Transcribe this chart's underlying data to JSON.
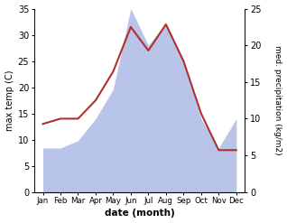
{
  "months": [
    "Jan",
    "Feb",
    "Mar",
    "Apr",
    "May",
    "Jun",
    "Jul",
    "Aug",
    "Sep",
    "Oct",
    "Nov",
    "Dec"
  ],
  "temperature": [
    13.0,
    14.0,
    14.0,
    17.5,
    23.0,
    31.5,
    27.0,
    32.0,
    25.0,
    15.0,
    8.0,
    8.0
  ],
  "precipitation": [
    6.0,
    6.0,
    7.0,
    10.0,
    14.0,
    25.0,
    20.0,
    23.0,
    18.0,
    10.0,
    6.0,
    10.0
  ],
  "temp_color": "#b03030",
  "precip_color": "#b8c4e8",
  "temp_ylim": [
    0,
    35
  ],
  "precip_ylim": [
    0,
    25
  ],
  "temp_yticks": [
    0,
    5,
    10,
    15,
    20,
    25,
    30,
    35
  ],
  "precip_yticks": [
    0,
    5,
    10,
    15,
    20,
    25
  ],
  "xlabel": "date (month)",
  "ylabel_left": "max temp (C)",
  "ylabel_right": "med. precipitation (kg/m2)",
  "background_color": "#ffffff",
  "figsize": [
    3.18,
    2.47
  ],
  "dpi": 100
}
